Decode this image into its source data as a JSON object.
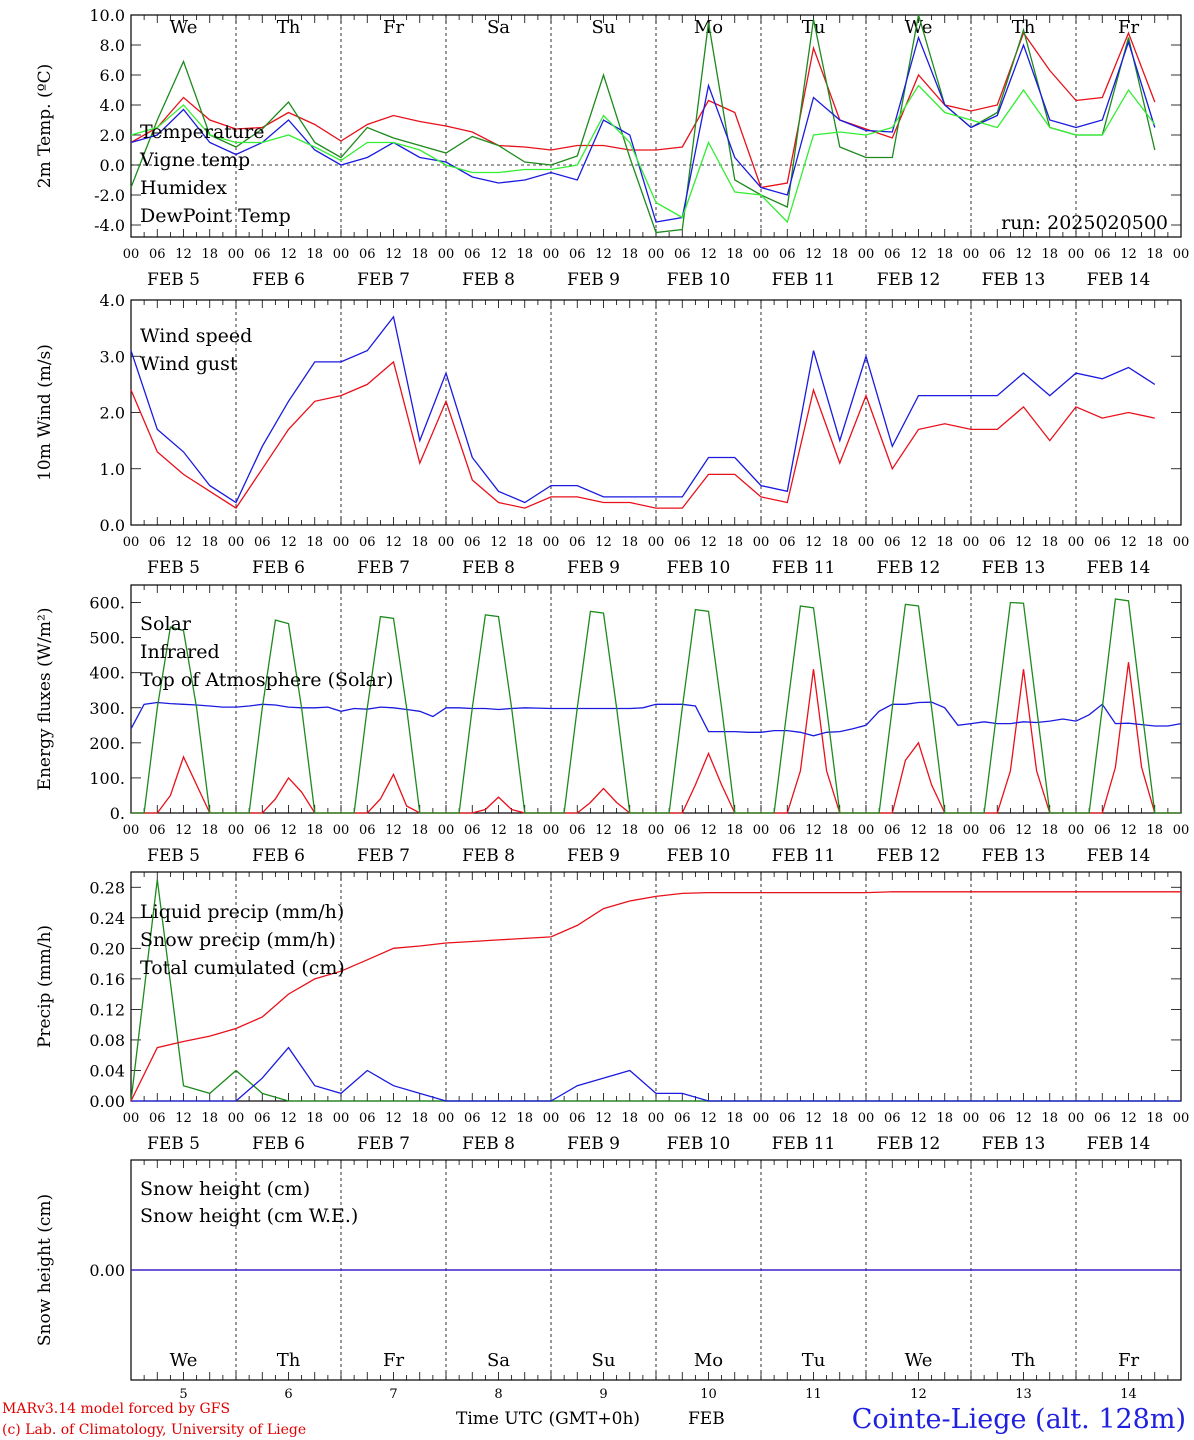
{
  "colors": {
    "red": "#e8101a",
    "green": "#1d8a1d",
    "blue": "#1a1ae0",
    "lightgreen": "#33ee33",
    "black": "#000000"
  },
  "days": [
    "We",
    "Th",
    "Fr",
    "Sa",
    "Su",
    "Mo",
    "Tu",
    "We",
    "Th",
    "Fr"
  ],
  "weekend_days": [
    "Sa",
    "Su"
  ],
  "date_labels": [
    "FEB  5",
    "FEB  6",
    "FEB  7",
    "FEB  8",
    "FEB  9",
    "FEB 10",
    "FEB 11",
    "FEB 12",
    "FEB 13",
    "FEB 14"
  ],
  "hour_labels": [
    "00",
    "06",
    "12",
    "18"
  ],
  "bottom_day_numbers": [
    "5",
    "6",
    "7",
    "8",
    "9",
    "10",
    "11",
    "12",
    "13",
    "14"
  ],
  "xlabel": "Time UTC (GMT+0h)",
  "xlabel_month": "FEB",
  "footer": {
    "line1": "MARv3.14 model forced by GFS",
    "line2": "(c) Lab. of Climatology, University of Liege"
  },
  "station_title": "Cointe-Liege (alt. 128m)",
  "chart_data": [
    {
      "type": "line",
      "panel": "temperature",
      "ylabel": "2m Temp. (ºC)",
      "ylim": [
        -4.8,
        10.0
      ],
      "yticks": [
        "10.0",
        "8.0",
        "6.0",
        "4.0",
        "2.0",
        "0.0",
        "-2.0",
        "-4.0"
      ],
      "ytick_values": [
        10,
        8,
        6,
        4,
        2,
        0,
        -2,
        -4
      ],
      "annotation": "run: 2025020500",
      "x_hours": [
        0,
        6,
        12,
        18,
        24,
        30,
        36,
        42,
        48,
        54,
        60,
        66,
        72,
        78,
        84,
        90,
        96,
        102,
        108,
        114,
        120,
        126,
        132,
        138,
        144,
        150,
        156,
        162,
        168,
        174,
        180,
        186,
        192,
        198,
        204,
        210,
        216,
        222,
        228,
        234
      ],
      "series": [
        {
          "name": "Temperature",
          "color": "red",
          "values": [
            1.5,
            2.5,
            4.5,
            3.0,
            2.4,
            2.5,
            3.5,
            2.7,
            1.6,
            2.7,
            3.3,
            2.9,
            2.6,
            2.2,
            1.3,
            1.2,
            1.0,
            1.3,
            1.3,
            1.0,
            1.0,
            1.2,
            4.3,
            3.5,
            -1.5,
            -1.2,
            7.8,
            3.0,
            2.4,
            1.8,
            6.0,
            4.0,
            3.6,
            4.0,
            8.8,
            6.3,
            4.3,
            4.5,
            8.8,
            4.2
          ]
        },
        {
          "name": "Vigne temp",
          "color": "green",
          "values": [
            -1.5,
            3.0,
            6.9,
            2.0,
            1.2,
            2.4,
            4.2,
            1.5,
            0.5,
            2.5,
            1.8,
            1.3,
            0.8,
            1.9,
            1.3,
            0.2,
            0.0,
            0.6,
            6.0,
            0.5,
            -4.5,
            -4.3,
            9.5,
            -1.0,
            -2.0,
            -2.8,
            9.7,
            1.2,
            0.5,
            0.5,
            10.0,
            4.0,
            2.5,
            3.5,
            9.0,
            2.5,
            2.0,
            2.0,
            8.5,
            1.0
          ]
        },
        {
          "name": "Humidex",
          "color": "blue",
          "values": [
            1.5,
            2.0,
            3.7,
            1.5,
            0.7,
            1.5,
            3.0,
            1.0,
            0.0,
            0.5,
            1.5,
            0.5,
            0.2,
            -0.8,
            -1.2,
            -1.0,
            -0.5,
            -1.0,
            3.0,
            2.0,
            -3.8,
            -3.5,
            5.3,
            0.5,
            -1.5,
            -2.0,
            4.5,
            3.0,
            2.3,
            2.2,
            8.5,
            4.0,
            2.5,
            3.3,
            8.0,
            3.0,
            2.5,
            3.0,
            8.2,
            2.5
          ]
        },
        {
          "name": "DewPoint Temp",
          "color": "lightgreen",
          "values": [
            2.0,
            2.5,
            4.0,
            2.0,
            1.5,
            1.5,
            2.0,
            1.2,
            0.3,
            1.5,
            1.5,
            1.0,
            0.0,
            -0.5,
            -0.5,
            -0.3,
            -0.3,
            0.0,
            3.3,
            1.5,
            -2.5,
            -3.5,
            1.5,
            -1.8,
            -2.0,
            -3.8,
            2.0,
            2.2,
            2.0,
            2.5,
            5.3,
            3.5,
            3.0,
            2.5,
            5.0,
            2.5,
            2.0,
            2.0,
            5.0,
            2.7
          ]
        }
      ]
    },
    {
      "type": "line",
      "panel": "wind",
      "ylabel": "10m Wind (m/s)",
      "ylim": [
        0.0,
        4.0
      ],
      "yticks": [
        "4.0",
        "3.0",
        "2.0",
        "1.0",
        "0.0"
      ],
      "ytick_values": [
        4,
        3,
        2,
        1,
        0
      ],
      "x_hours": [
        0,
        6,
        12,
        18,
        24,
        30,
        36,
        42,
        48,
        54,
        60,
        66,
        72,
        78,
        84,
        90,
        96,
        102,
        108,
        114,
        120,
        126,
        132,
        138,
        144,
        150,
        156,
        162,
        168,
        174,
        180,
        186,
        192,
        198,
        204,
        210,
        216,
        222,
        228,
        234
      ],
      "series": [
        {
          "name": "Wind speed",
          "color": "red",
          "values": [
            2.4,
            1.3,
            0.9,
            0.6,
            0.3,
            1.0,
            1.7,
            2.2,
            2.3,
            2.5,
            2.9,
            1.1,
            2.2,
            0.8,
            0.4,
            0.3,
            0.5,
            0.5,
            0.4,
            0.4,
            0.3,
            0.3,
            0.9,
            0.9,
            0.5,
            0.4,
            2.4,
            1.1,
            2.3,
            1.0,
            1.7,
            1.8,
            1.7,
            1.7,
            2.1,
            1.5,
            2.1,
            1.9,
            2.0,
            1.9
          ]
        },
        {
          "name": "Wind gust",
          "color": "blue",
          "values": [
            3.1,
            1.7,
            1.3,
            0.7,
            0.4,
            1.4,
            2.2,
            2.9,
            2.9,
            3.1,
            3.7,
            1.5,
            2.7,
            1.2,
            0.6,
            0.4,
            0.7,
            0.7,
            0.5,
            0.5,
            0.5,
            0.5,
            1.2,
            1.2,
            0.7,
            0.6,
            3.1,
            1.5,
            3.0,
            1.4,
            2.3,
            2.3,
            2.3,
            2.3,
            2.7,
            2.3,
            2.7,
            2.6,
            2.8,
            2.5
          ]
        }
      ]
    },
    {
      "type": "line",
      "panel": "energy",
      "ylabel": "Energy fluxes (W/m²)",
      "ylim": [
        0,
        650
      ],
      "yticks": [
        "600.",
        "500.",
        "400.",
        "300.",
        "200.",
        "100.",
        "0."
      ],
      "ytick_values": [
        600,
        500,
        400,
        300,
        200,
        100,
        0
      ],
      "x_hours": [
        0,
        3,
        6,
        9,
        12,
        15,
        18,
        21,
        24,
        27,
        30,
        33,
        36,
        39,
        42,
        45,
        48,
        51,
        54,
        57,
        60,
        63,
        66,
        69,
        72,
        75,
        78,
        81,
        84,
        87,
        90,
        93,
        96,
        99,
        102,
        105,
        108,
        111,
        114,
        117,
        120,
        123,
        126,
        129,
        132,
        135,
        138,
        141,
        144,
        147,
        150,
        153,
        156,
        159,
        162,
        165,
        168,
        171,
        174,
        177,
        180,
        183,
        186,
        189,
        192,
        195,
        198,
        201,
        204,
        207,
        210,
        213,
        216,
        219,
        222,
        225,
        228,
        231,
        234,
        237,
        240
      ],
      "series": [
        {
          "name": "Solar",
          "color": "red",
          "values": [
            0,
            0,
            0,
            50,
            160,
            80,
            0,
            0,
            0,
            0,
            0,
            40,
            100,
            60,
            0,
            0,
            0,
            0,
            0,
            40,
            110,
            20,
            0,
            0,
            0,
            0,
            0,
            10,
            45,
            10,
            0,
            0,
            0,
            0,
            0,
            30,
            70,
            30,
            0,
            0,
            0,
            0,
            0,
            80,
            170,
            80,
            0,
            0,
            0,
            0,
            0,
            120,
            410,
            120,
            0,
            0,
            0,
            0,
            0,
            150,
            200,
            80,
            0,
            0,
            0,
            0,
            0,
            120,
            410,
            120,
            0,
            0,
            0,
            0,
            0,
            130,
            430,
            130,
            0,
            0,
            0
          ]
        },
        {
          "name": "Infrared",
          "color": "blue",
          "values": [
            240,
            310,
            315,
            312,
            310,
            308,
            305,
            302,
            302,
            305,
            310,
            308,
            302,
            300,
            300,
            302,
            290,
            298,
            296,
            302,
            300,
            295,
            290,
            275,
            300,
            300,
            298,
            298,
            295,
            298,
            300,
            299,
            298,
            298,
            298,
            298,
            298,
            298,
            298,
            300,
            310,
            310,
            310,
            305,
            232,
            232,
            232,
            230,
            230,
            235,
            235,
            230,
            220,
            230,
            232,
            240,
            250,
            290,
            310,
            310,
            315,
            316,
            300,
            250,
            255,
            260,
            255,
            255,
            260,
            258,
            262,
            268,
            262,
            280,
            310,
            255,
            256,
            252,
            248,
            248,
            255
          ]
        },
        {
          "name": "Top of Atmosphere (Solar)",
          "color": "green",
          "values": [
            0,
            0,
            300,
            530,
            520,
            300,
            0,
            0,
            0,
            0,
            300,
            550,
            540,
            300,
            0,
            0,
            0,
            0,
            300,
            560,
            555,
            300,
            0,
            0,
            0,
            0,
            300,
            565,
            560,
            300,
            0,
            0,
            0,
            0,
            300,
            575,
            570,
            300,
            0,
            0,
            0,
            0,
            300,
            580,
            575,
            300,
            0,
            0,
            0,
            0,
            300,
            590,
            585,
            300,
            0,
            0,
            0,
            0,
            300,
            595,
            590,
            300,
            0,
            0,
            0,
            0,
            300,
            600,
            598,
            300,
            0,
            0,
            0,
            0,
            300,
            610,
            605,
            300,
            0,
            0,
            0
          ]
        }
      ]
    },
    {
      "type": "line",
      "panel": "precip",
      "ylabel": "Precip (mm/h)",
      "ylim": [
        0.0,
        0.3
      ],
      "yticks": [
        "0.28",
        "0.24",
        "0.20",
        "0.16",
        "0.12",
        "0.08",
        "0.04",
        "0.00"
      ],
      "ytick_values": [
        0.28,
        0.24,
        0.2,
        0.16,
        0.12,
        0.08,
        0.04,
        0.0
      ],
      "x_hours": [
        0,
        6,
        12,
        18,
        24,
        30,
        36,
        42,
        48,
        54,
        60,
        66,
        72,
        78,
        84,
        90,
        96,
        102,
        108,
        114,
        120,
        126,
        132,
        138,
        144,
        150,
        156,
        162,
        168,
        174,
        180,
        186,
        192,
        198,
        204,
        210,
        216,
        222,
        228,
        234,
        240
      ],
      "series": [
        {
          "name": "Liquid precip (mm/h)",
          "color": "green",
          "values": [
            0.0,
            0.29,
            0.02,
            0.01,
            0.04,
            0.01,
            0.0,
            0.0,
            0.0,
            0.0,
            0.0,
            0.0,
            0.0,
            0.0,
            0.0,
            0.0,
            0.0,
            0.0,
            0.0,
            0.0,
            0.0,
            0.0,
            0.0,
            0.0,
            0.0,
            0.0,
            0.0,
            0.0,
            0.0,
            0.0,
            0.0,
            0.0,
            0.0,
            0.0,
            0.0,
            0.0,
            0.0,
            0.0,
            0.0,
            0.0,
            0.0
          ]
        },
        {
          "name": "Snow precip (mm/h)",
          "color": "blue",
          "values": [
            0.0,
            0.0,
            0.0,
            0.0,
            0.0,
            0.03,
            0.07,
            0.02,
            0.01,
            0.04,
            0.02,
            0.01,
            0.0,
            0.0,
            0.0,
            0.0,
            0.0,
            0.02,
            0.03,
            0.04,
            0.01,
            0.01,
            0.0,
            0.0,
            0.0,
            0.0,
            0.0,
            0.0,
            0.0,
            0.0,
            0.0,
            0.0,
            0.0,
            0.0,
            0.0,
            0.0,
            0.0,
            0.0,
            0.0,
            0.0,
            0.0
          ]
        },
        {
          "name": "Total cumulated (cm)",
          "color": "red",
          "values": [
            0.0,
            0.07,
            0.078,
            0.085,
            0.095,
            0.11,
            0.14,
            0.16,
            0.17,
            0.185,
            0.2,
            0.203,
            0.207,
            0.209,
            0.211,
            0.213,
            0.215,
            0.23,
            0.252,
            0.262,
            0.268,
            0.272,
            0.273,
            0.273,
            0.273,
            0.273,
            0.273,
            0.273,
            0.273,
            0.274,
            0.274,
            0.274,
            0.274,
            0.274,
            0.274,
            0.274,
            0.274,
            0.274,
            0.274,
            0.274,
            0.274
          ]
        }
      ]
    },
    {
      "type": "line",
      "panel": "snow",
      "ylabel": "Snow height (cm)",
      "ylim": [
        -1,
        1
      ],
      "yticks": [
        "0.00"
      ],
      "ytick_values": [
        0
      ],
      "x_hours": [
        0,
        240
      ],
      "series": [
        {
          "name": "Snow height (cm)",
          "color": "red",
          "values": [
            0,
            0
          ]
        },
        {
          "name": "Snow height (cm W.E.)",
          "color": "blue",
          "values": [
            0,
            0
          ]
        }
      ]
    }
  ]
}
